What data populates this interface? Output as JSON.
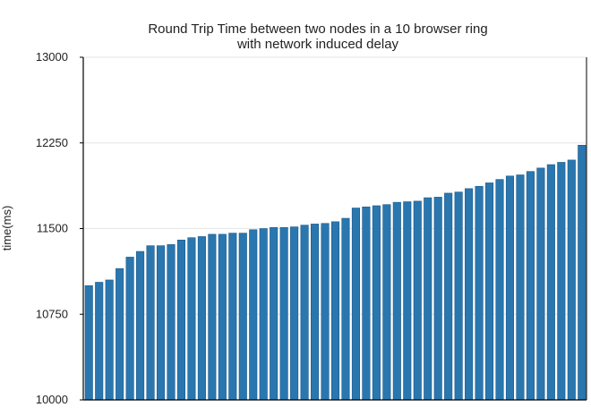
{
  "colors": {
    "bar_fill": "#2a77b0",
    "bar_edge": "#1b5a8a",
    "grid": "#e6e6e6",
    "axis": "#000000",
    "background": "#ffffff"
  },
  "chart_data": {
    "type": "bar",
    "title": "Round Trip Time between two nodes in a 10 browser ring",
    "subtitle": "with network induced delay",
    "xlabel": "",
    "ylabel": "time(ms)",
    "ylim": [
      10000,
      13000
    ],
    "yticks": [
      10000,
      10750,
      11500,
      12250,
      13000
    ],
    "grid": true,
    "legend": "none",
    "values": [
      11000,
      11030,
      11050,
      11150,
      11250,
      11300,
      11350,
      11350,
      11360,
      11400,
      11420,
      11430,
      11450,
      11450,
      11460,
      11460,
      11490,
      11500,
      11510,
      11510,
      11515,
      11530,
      11540,
      11545,
      11560,
      11590,
      11680,
      11690,
      11700,
      11710,
      11730,
      11735,
      11740,
      11770,
      11775,
      11810,
      11820,
      11850,
      11870,
      11900,
      11930,
      11960,
      11970,
      12000,
      12030,
      12060,
      12080,
      12100,
      12230
    ]
  }
}
